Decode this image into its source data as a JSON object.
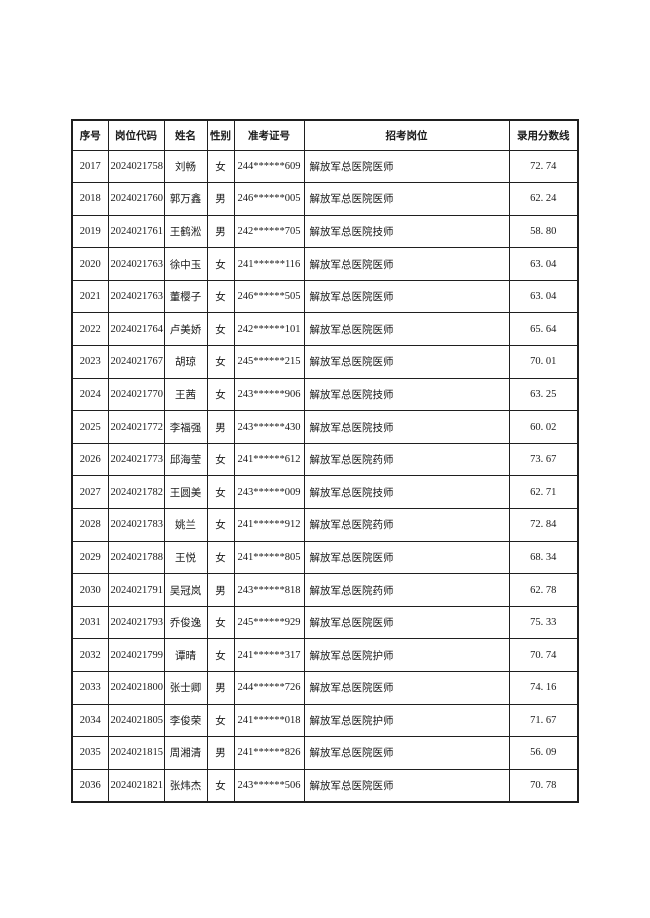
{
  "page": {
    "background": "#ffffff",
    "border_color": "#1f1f1f"
  },
  "table": {
    "columns": [
      {
        "key": "seq",
        "label": "序号",
        "align": "center"
      },
      {
        "key": "code",
        "label": "岗位代码",
        "align": "center"
      },
      {
        "key": "name",
        "label": "姓名",
        "align": "center"
      },
      {
        "key": "gender",
        "label": "性别",
        "align": "center"
      },
      {
        "key": "ticket",
        "label": "准考证号",
        "align": "center"
      },
      {
        "key": "position",
        "label": "招考岗位",
        "align": "left"
      },
      {
        "key": "score",
        "label": "录用分数线",
        "align": "center"
      }
    ],
    "rows": [
      [
        "2017",
        "2024021758",
        "刘畅",
        "女",
        "244******609",
        "解放军总医院医师",
        "72. 74"
      ],
      [
        "2018",
        "2024021760",
        "郭万鑫",
        "男",
        "246******005",
        "解放军总医院医师",
        "62. 24"
      ],
      [
        "2019",
        "2024021761",
        "王鹤淞",
        "男",
        "242******705",
        "解放军总医院技师",
        "58. 80"
      ],
      [
        "2020",
        "2024021763",
        "徐中玉",
        "女",
        "241******116",
        "解放军总医院医师",
        "63. 04"
      ],
      [
        "2021",
        "2024021763",
        "董樱子",
        "女",
        "246******505",
        "解放军总医院医师",
        "63. 04"
      ],
      [
        "2022",
        "2024021764",
        "卢美娇",
        "女",
        "242******101",
        "解放军总医院医师",
        "65. 64"
      ],
      [
        "2023",
        "2024021767",
        "胡琼",
        "女",
        "245******215",
        "解放军总医院医师",
        "70. 01"
      ],
      [
        "2024",
        "2024021770",
        "王茜",
        "女",
        "243******906",
        "解放军总医院技师",
        "63. 25"
      ],
      [
        "2025",
        "2024021772",
        "李福强",
        "男",
        "243******430",
        "解放军总医院技师",
        "60. 02"
      ],
      [
        "2026",
        "2024021773",
        "邱海莹",
        "女",
        "241******612",
        "解放军总医院药师",
        "73. 67"
      ],
      [
        "2027",
        "2024021782",
        "王圆美",
        "女",
        "243******009",
        "解放军总医院技师",
        "62. 71"
      ],
      [
        "2028",
        "2024021783",
        "姚兰",
        "女",
        "241******912",
        "解放军总医院药师",
        "72. 84"
      ],
      [
        "2029",
        "2024021788",
        "王悦",
        "女",
        "241******805",
        "解放军总医院医师",
        "68. 34"
      ],
      [
        "2030",
        "2024021791",
        "吴冠岚",
        "男",
        "243******818",
        "解放军总医院药师",
        "62. 78"
      ],
      [
        "2031",
        "2024021793",
        "乔俊逸",
        "女",
        "245******929",
        "解放军总医院医师",
        "75. 33"
      ],
      [
        "2032",
        "2024021799",
        "谭晴",
        "女",
        "241******317",
        "解放军总医院护师",
        "70. 74"
      ],
      [
        "2033",
        "2024021800",
        "张士卿",
        "男",
        "244******726",
        "解放军总医院医师",
        "74. 16"
      ],
      [
        "2034",
        "2024021805",
        "李俊荣",
        "女",
        "241******018",
        "解放军总医院护师",
        "71. 67"
      ],
      [
        "2035",
        "2024021815",
        "周湘清",
        "男",
        "241******826",
        "解放军总医院医师",
        "56. 09"
      ],
      [
        "2036",
        "2024021821",
        "张炜杰",
        "女",
        "243******506",
        "解放军总医院医师",
        "70. 78"
      ]
    ]
  }
}
